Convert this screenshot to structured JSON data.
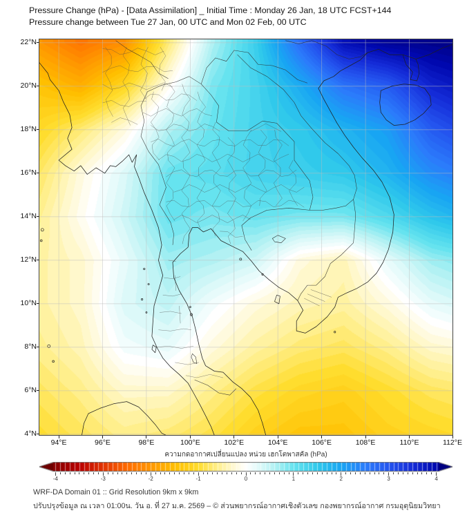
{
  "header": {
    "title_line1": "Pressure Change (hPa) - [Data Assimilation] _ Initial Time : Monday 26 Jan, 18 UTC FCST+144",
    "title_line2": "Pressure change between Tue 27 Jan, 00 UTC and Mon 02 Feb, 00 UTC"
  },
  "chart_data": {
    "type": "heatmap",
    "title": "Pressure Change (hPa) - [Data Assimilation]",
    "x_axis": {
      "suffix": "°E",
      "ticks": [
        94,
        96,
        98,
        100,
        102,
        104,
        106,
        108,
        110,
        112
      ]
    },
    "y_axis": {
      "suffix": "°N",
      "ticks": [
        22,
        20,
        18,
        16,
        14,
        12,
        10,
        8,
        6,
        4
      ]
    },
    "lon_range": [
      93.115,
      111.97
    ],
    "lat_range": [
      3.965,
      22.155
    ],
    "grid": {
      "lons": [
        93,
        95,
        97,
        99,
        101,
        103,
        105,
        107,
        109,
        111,
        113
      ],
      "lats": [
        22,
        20,
        18,
        16,
        14,
        12,
        10,
        8,
        6,
        4
      ],
      "values_hpa": [
        [
          -2.0,
          -2.4,
          -2.1,
          -0.7,
          0.6,
          1.4,
          2.7,
          3.9,
          4.2,
          4.3,
          4.4
        ],
        [
          -1.4,
          -1.7,
          -1.1,
          -0.1,
          0.9,
          1.3,
          1.9,
          2.6,
          2.9,
          3.6,
          3.9
        ],
        [
          -1.1,
          -0.7,
          -0.2,
          0.6,
          1.0,
          1.3,
          1.5,
          1.8,
          2.1,
          2.9,
          3.3
        ],
        [
          -0.8,
          -0.2,
          0.3,
          1.0,
          1.1,
          1.3,
          1.4,
          1.5,
          1.8,
          2.3,
          2.6
        ],
        [
          -0.6,
          -0.1,
          0.4,
          1.0,
          0.9,
          1.0,
          0.9,
          0.9,
          1.2,
          1.6,
          1.9
        ],
        [
          -0.5,
          -0.3,
          0.2,
          0.7,
          0.6,
          0.4,
          -0.2,
          -0.4,
          0.2,
          0.7,
          0.9
        ],
        [
          -0.5,
          -0.3,
          0.3,
          0.5,
          0.1,
          -0.2,
          -0.4,
          -0.5,
          -0.2,
          0.2,
          0.4
        ],
        [
          -0.6,
          -0.4,
          0.1,
          0.2,
          -0.2,
          -0.5,
          -0.7,
          -0.8,
          -0.6,
          -0.3,
          -0.2
        ],
        [
          -0.8,
          -0.6,
          -0.3,
          -0.3,
          -0.6,
          -0.9,
          -1.1,
          -1.2,
          -1.0,
          -0.8,
          -0.7
        ],
        [
          -1.0,
          -0.8,
          -0.6,
          -0.7,
          -0.9,
          -1.2,
          -1.4,
          -1.4,
          -1.2,
          -1.1,
          -1.0
        ]
      ]
    },
    "colorbar": {
      "label": "ความกดอากาศเปลี่ยนแปลง หน่วย เฮกโตพาสคัล (hPa)",
      "ticks": [
        -4,
        -3,
        -2,
        -1,
        0,
        1,
        2,
        3,
        4
      ],
      "vmin": -4.05,
      "vmax": 4.05,
      "minor_step": 0.1,
      "colormap": [
        [
          -4.4,
          "#6E0000"
        ],
        [
          -4,
          "#8B0000"
        ],
        [
          -3.5,
          "#BA0000"
        ],
        [
          -3,
          "#E23400"
        ],
        [
          -2.5,
          "#FF6C00"
        ],
        [
          -2,
          "#FF9800"
        ],
        [
          -1.5,
          "#FFBF00"
        ],
        [
          -1,
          "#FFDD2E"
        ],
        [
          -0.6,
          "#FFEF8C"
        ],
        [
          -0.3,
          "#FFF8CC"
        ],
        [
          -0.1,
          "#FFFDF0"
        ],
        [
          0,
          "#FFFFFF"
        ],
        [
          0.1,
          "#F2FDFD"
        ],
        [
          0.3,
          "#DCF9F9"
        ],
        [
          0.6,
          "#B2F1F3"
        ],
        [
          1,
          "#66E3EF"
        ],
        [
          1.5,
          "#30C9EB"
        ],
        [
          2,
          "#18A5F3"
        ],
        [
          2.5,
          "#2B7CFB"
        ],
        [
          3,
          "#2454EF"
        ],
        [
          3.5,
          "#142BD7"
        ],
        [
          4,
          "#0008AF"
        ],
        [
          4.4,
          "#000080"
        ]
      ]
    }
  },
  "footer": {
    "line1": "WRF-DA Domain 01 :: Grid Resolution 9km x 9km",
    "line2": "ปรับปรุงข้อมูล ณ เวลา 01:00น. วัน อ. ที่ 27 ม.ค. 2569 – © ส่วนพยากรณ์อากาศเชิงตัวเลข กองพยากรณ์อากาศ กรมอุตุนิยมวิทยา"
  }
}
